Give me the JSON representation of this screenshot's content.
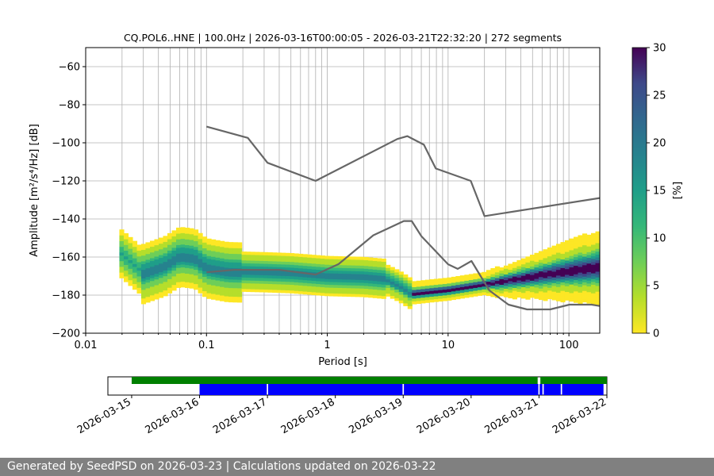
{
  "chart_data": {
    "type": "heatmap",
    "title": "CQ.POL6..HNE | 100.0Hz | 2026-03-16T00:00:05 - 2026-03-21T22:32:20 | 272 segments",
    "xlabel": "Period [s]",
    "ylabel": "Amplitude [m²/s⁴/Hz] [dB]",
    "xscale": "log",
    "xlim": [
      0.01,
      180
    ],
    "ylim": [
      -200,
      -50
    ],
    "x_ticks": [
      0.01,
      0.1,
      1,
      10,
      100
    ],
    "x_tick_labels": [
      "0.01",
      "0.1",
      "1",
      "10",
      "100"
    ],
    "y_ticks": [
      -200,
      -180,
      -160,
      -140,
      -120,
      -100,
      -80,
      -60
    ],
    "y_tick_labels": [
      "−200",
      "−180",
      "−160",
      "−140",
      "−120",
      "−100",
      "−80",
      "−60"
    ],
    "grid": true,
    "colorbar": {
      "label": "[%]",
      "range": [
        0,
        30
      ],
      "ticks": [
        0,
        5,
        10,
        15,
        20,
        25,
        30
      ],
      "tick_labels": [
        "0",
        "5",
        "10",
        "15",
        "20",
        "25",
        "30"
      ],
      "colormap": "viridis_r"
    },
    "noise_models": [
      {
        "name": "NHNM",
        "color": "#666666",
        "x": [
          0.1,
          0.22,
          0.32,
          0.8,
          3.8,
          4.6,
          6.3,
          7.9,
          15.4,
          20,
          180
        ],
        "y": [
          -91.5,
          -97.4,
          -110.5,
          -120,
          -98,
          -96.5,
          -101,
          -113.5,
          -120,
          -138.5,
          -129
        ]
      },
      {
        "name": "NLNM",
        "color": "#666666",
        "x": [
          0.1,
          0.17,
          0.4,
          0.8,
          1.24,
          2.4,
          4.3,
          5.0,
          6.0,
          10,
          12,
          15.6,
          21.9,
          31.6,
          45,
          70,
          101,
          154,
          180
        ],
        "y": [
          -168,
          -166.7,
          -166.7,
          -169.2,
          -163.7,
          -148.6,
          -141.1,
          -141.1,
          -149.0,
          -163.8,
          -166.2,
          -162.1,
          -177.5,
          -185.0,
          -187.5,
          -187.5,
          -185.0,
          -185.0,
          -185.7
        ]
      }
    ],
    "psd_ridge": {
      "x": [
        0.019,
        0.03,
        0.045,
        0.06,
        0.08,
        0.1,
        0.15,
        0.3,
        0.5,
        0.8,
        1.0,
        2.0,
        3.0,
        4.0,
        5.0,
        7.0,
        10,
        20,
        50,
        100,
        180
      ],
      "y": [
        -158,
        -169,
        -165,
        -160,
        -161,
        -166,
        -168,
        -168.5,
        -169,
        -170,
        -170.5,
        -171,
        -172,
        -176,
        -180,
        -179,
        -178,
        -175,
        -171,
        -168,
        -166
      ]
    }
  },
  "availability": {
    "date_ticks": [
      "2026-03-15",
      "2026-03-16",
      "2026-03-17",
      "2026-03-18",
      "2026-03-19",
      "2026-03-20",
      "2026-03-21",
      "2026-03-22"
    ],
    "xlim_days": [
      -0.35,
      7.0
    ],
    "bars": [
      {
        "name": "data-available",
        "color": "#008000",
        "row": "top",
        "segments": [
          [
            0.0,
            5.98
          ],
          [
            6.02,
            7.0
          ]
        ]
      },
      {
        "name": "psd-segments",
        "color": "#0000ff",
        "row": "bottom",
        "segments": [
          [
            1.0,
            1.99
          ],
          [
            2.01,
            3.99
          ],
          [
            4.01,
            5.99
          ],
          [
            6.01,
            6.05
          ],
          [
            6.07,
            6.32
          ],
          [
            6.34,
            6.95
          ]
        ]
      }
    ]
  },
  "footer": {
    "text": "Generated by SeedPSD on 2026-03-23 | Calculations updated on 2026-03-22"
  }
}
